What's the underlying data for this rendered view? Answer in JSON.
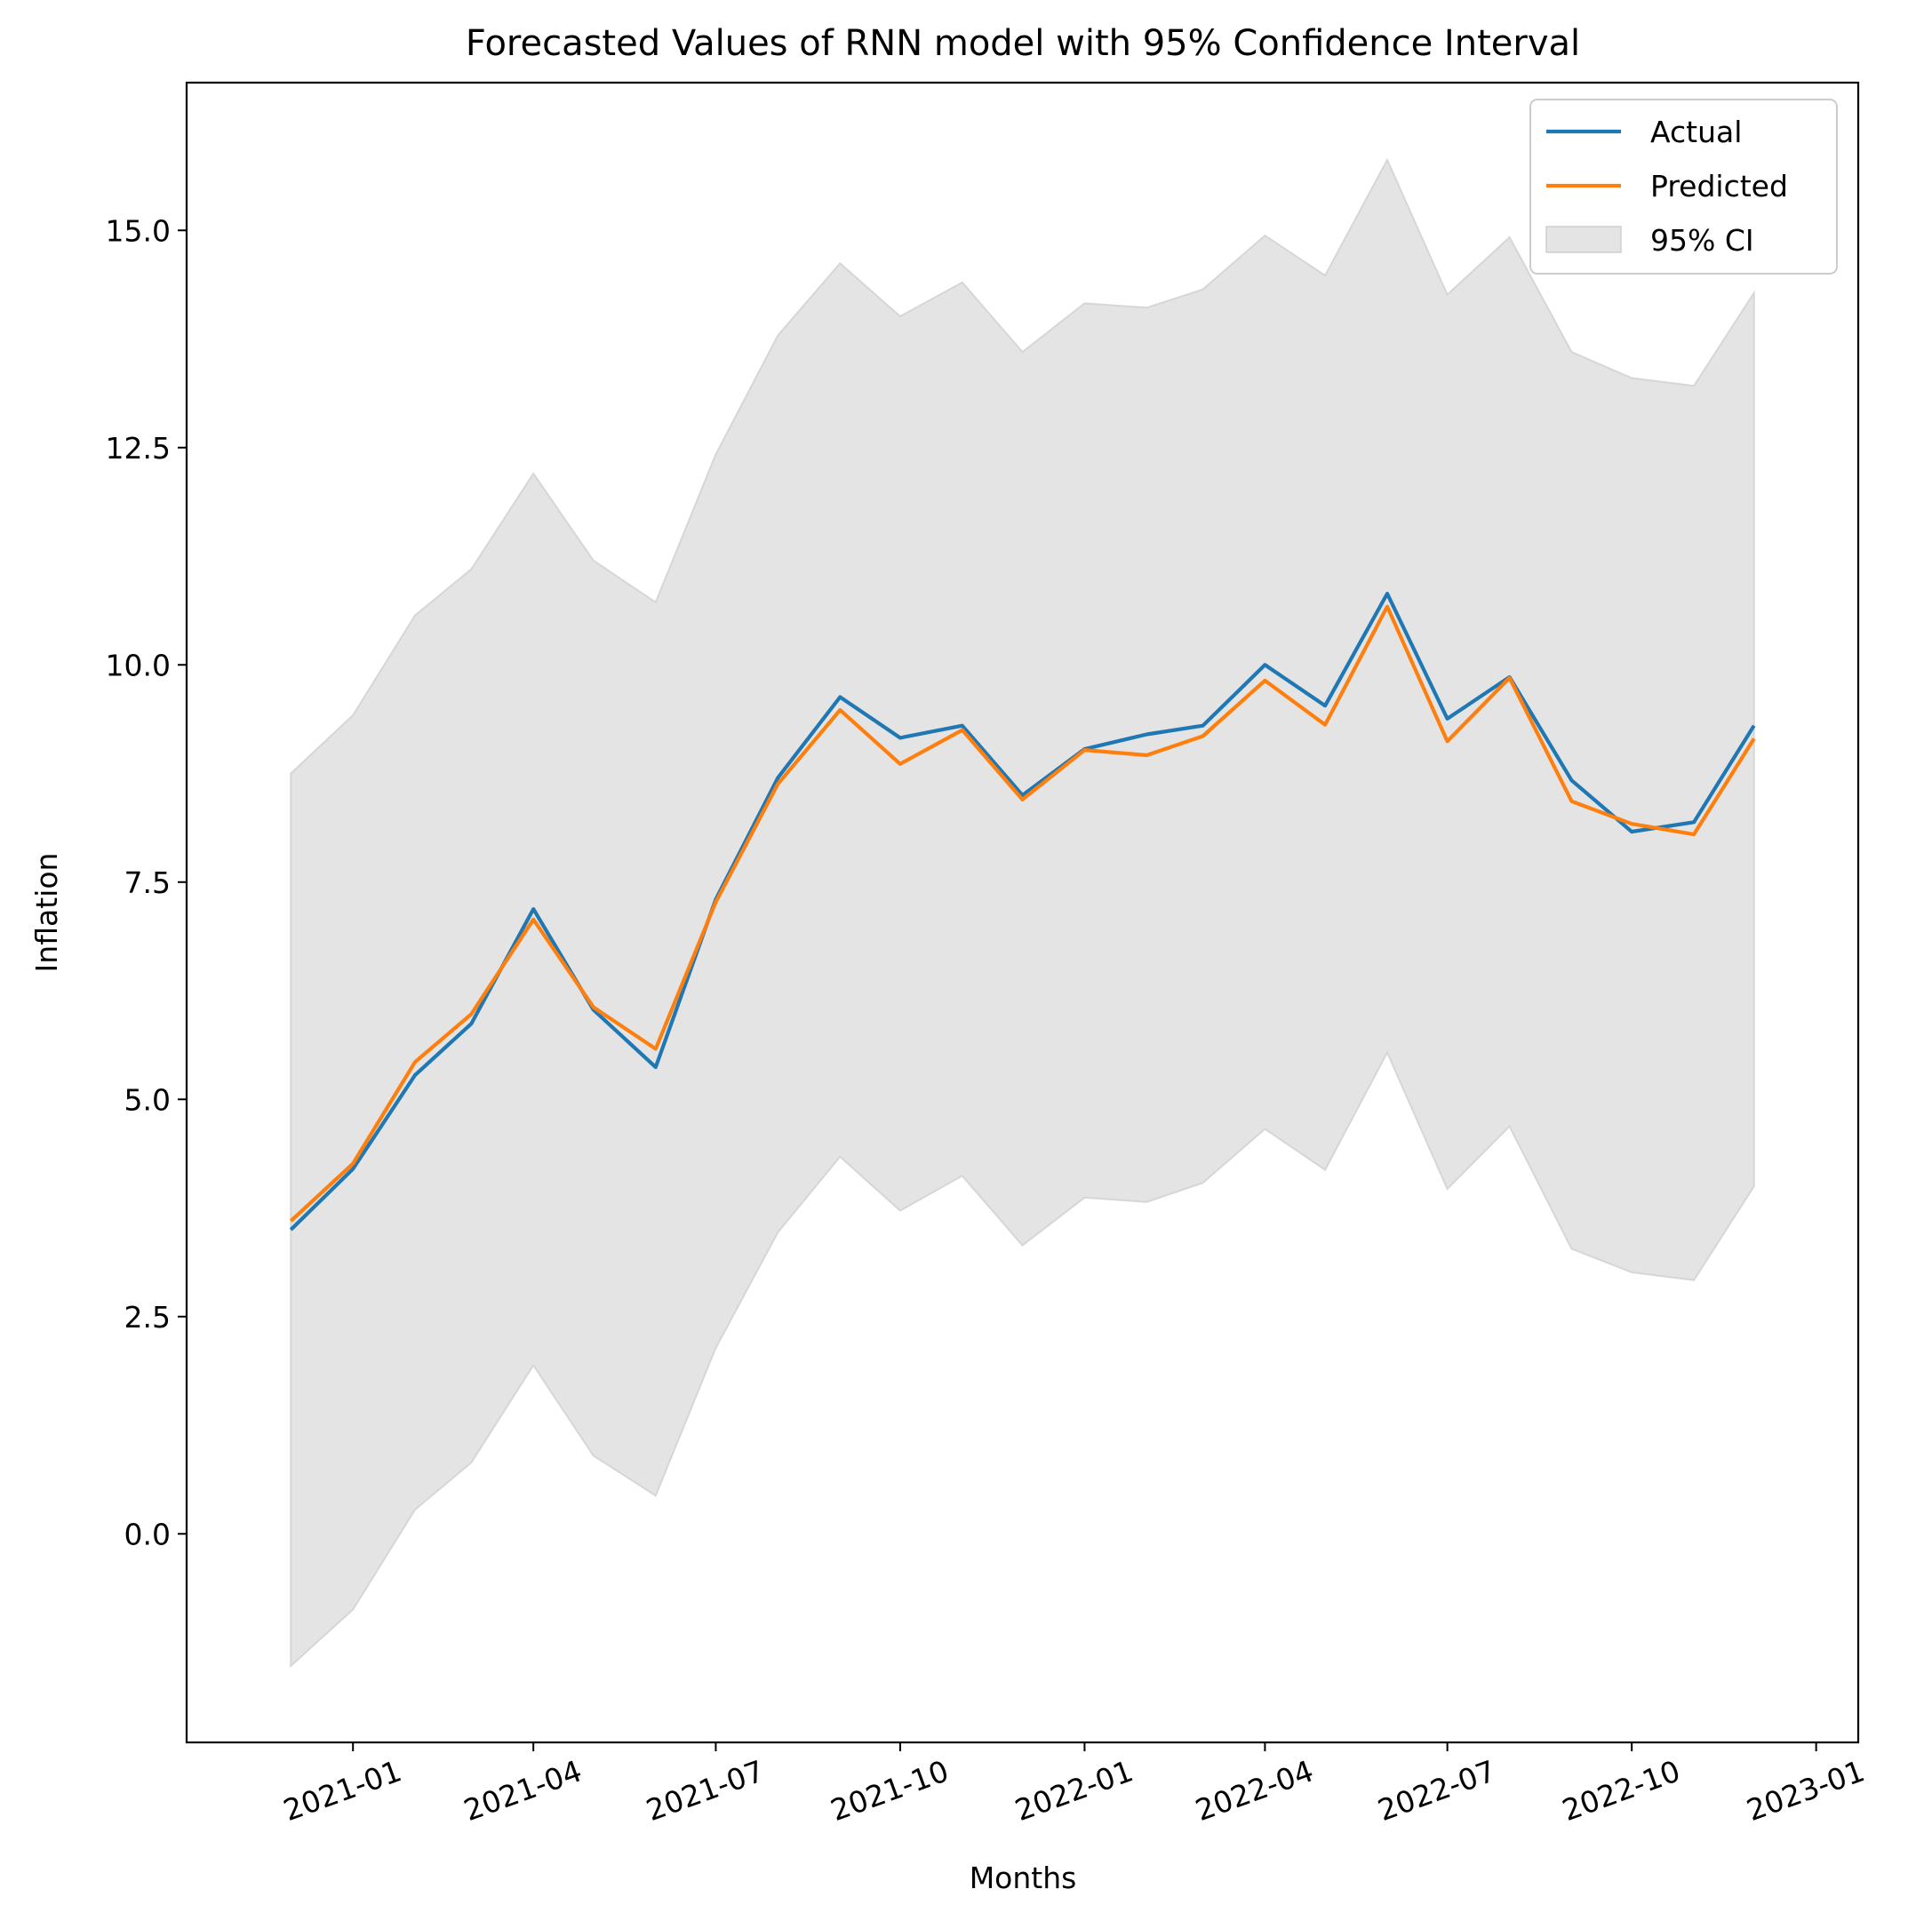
{
  "chart_data": {
    "type": "line",
    "title": "Forecasted Values of RNN model with 95% Confidence Interval",
    "xlabel": "Months",
    "ylabel": "Inflation",
    "x": [
      "2020-12",
      "2021-01",
      "2021-02",
      "2021-03",
      "2021-04",
      "2021-05",
      "2021-06",
      "2021-07",
      "2021-08",
      "2021-09",
      "2021-10",
      "2021-11",
      "2021-12",
      "2022-01",
      "2022-02",
      "2022-03",
      "2022-04",
      "2022-05",
      "2022-06",
      "2022-07",
      "2022-08",
      "2022-09",
      "2022-10",
      "2022-11",
      "2022-12"
    ],
    "xlim": [
      "2020-10-10",
      "2023-01-22"
    ],
    "ylim": [
      -2.4,
      16.7
    ],
    "x_ticks": [
      "2021-01",
      "2021-04",
      "2021-07",
      "2021-10",
      "2022-01",
      "2022-04",
      "2022-07",
      "2022-10",
      "2023-01"
    ],
    "y_ticks": [
      "0.0",
      "2.5",
      "5.0",
      "7.5",
      "10.0",
      "12.5",
      "15.0"
    ],
    "series": [
      {
        "name": "Actual",
        "color": "#1f77b4",
        "values": [
          3.5,
          4.2,
          5.28,
          5.87,
          7.19,
          6.03,
          5.37,
          7.3,
          8.7,
          9.63,
          9.16,
          9.3,
          8.5,
          9.03,
          9.2,
          9.3,
          10.0,
          9.53,
          10.82,
          9.38,
          9.86,
          8.67,
          8.08,
          8.19,
          9.3
        ]
      },
      {
        "name": "Predicted",
        "color": "#ff7f0e",
        "values": [
          3.6,
          4.26,
          5.43,
          5.98,
          7.07,
          6.06,
          5.58,
          7.27,
          8.63,
          9.48,
          8.86,
          9.25,
          8.45,
          9.02,
          8.96,
          9.18,
          9.82,
          9.31,
          10.67,
          9.12,
          9.85,
          8.43,
          8.17,
          8.05,
          9.15
        ]
      }
    ],
    "confidence_interval": {
      "name": "95% CI",
      "color": "#e4e4e4",
      "upper": [
        8.75,
        9.42,
        10.57,
        11.1,
        12.2,
        11.2,
        10.72,
        12.42,
        13.79,
        14.62,
        14.01,
        14.4,
        13.6,
        14.16,
        14.11,
        14.32,
        14.94,
        14.48,
        15.81,
        14.26,
        14.92,
        13.6,
        13.3,
        13.21,
        14.28
      ]
    },
    "ci_lower": [
      -1.52,
      -0.87,
      0.28,
      0.82,
      1.94,
      0.9,
      0.44,
      2.14,
      3.47,
      4.34,
      3.72,
      4.12,
      3.32,
      3.87,
      3.82,
      4.04,
      4.66,
      4.19,
      5.54,
      3.97,
      4.69,
      3.28,
      3.01,
      2.92,
      4.0
    ],
    "legend": {
      "position": "top-right",
      "entries": [
        "Actual",
        "Predicted",
        "95% CI"
      ]
    },
    "grid": false
  }
}
